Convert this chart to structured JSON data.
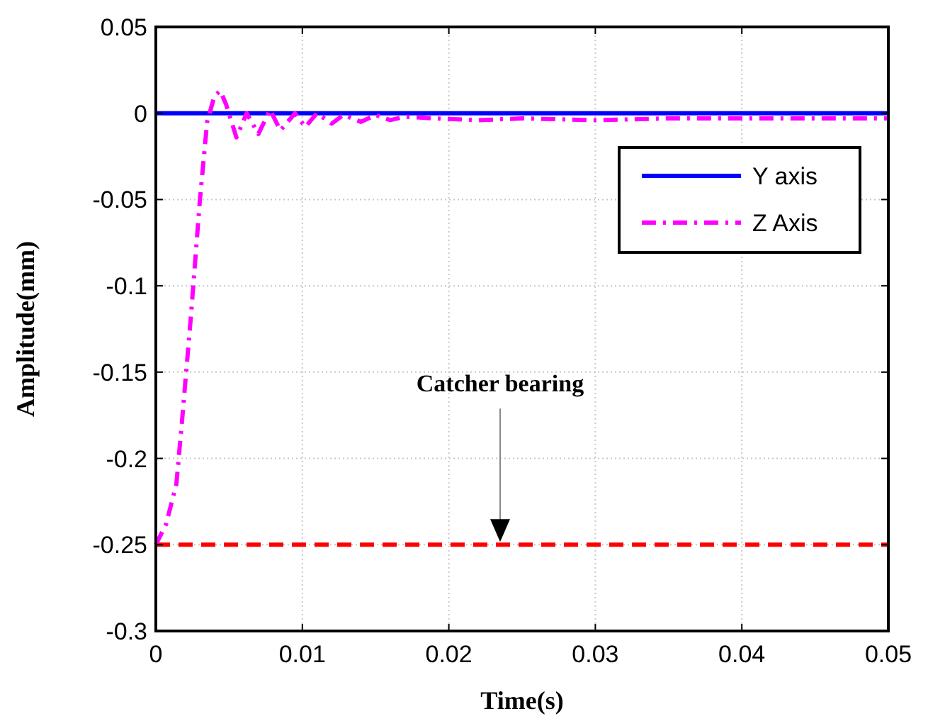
{
  "chart_data": {
    "type": "line",
    "xlabel": "Time(s)",
    "ylabel": "Amplitude(mm)",
    "xlim": [
      0,
      0.05
    ],
    "xticks": [
      0,
      0.01,
      0.02,
      0.03,
      0.04,
      0.05
    ],
    "ylim": [
      -0.3,
      0.05
    ],
    "yticks": [
      -0.3,
      -0.25,
      -0.2,
      -0.15,
      -0.1,
      -0.05,
      0,
      0.05
    ],
    "grid": true,
    "legend": "top right",
    "marker": "none",
    "annotations": [
      "Catcher bearing"
    ],
    "series": [
      {
        "name": "Y axis",
        "color": "#0000ff",
        "line_style": "solid",
        "x": [
          0,
          0.05
        ],
        "values": [
          0,
          0
        ]
      },
      {
        "name": "Z Axis",
        "color": "#ff00ff",
        "line_style": "dashdot",
        "x": [
          0,
          0.0007,
          0.0014,
          0.0018,
          0.0024,
          0.003,
          0.0035,
          0.004,
          0.0044,
          0.0048,
          0.0055,
          0.0062,
          0.007,
          0.0078,
          0.0085,
          0.0095,
          0.0102,
          0.011,
          0.012,
          0.0128,
          0.014,
          0.015,
          0.016,
          0.017,
          0.019,
          0.022,
          0.025,
          0.03,
          0.035,
          0.04,
          0.045,
          0.05
        ],
        "values": [
          -0.25,
          -0.238,
          -0.215,
          -0.177,
          -0.117,
          -0.051,
          -0.005,
          0.01,
          0.013,
          0.005,
          -0.014,
          0,
          -0.012,
          0.002,
          -0.01,
          0,
          -0.008,
          0,
          -0.006,
          -0.001,
          -0.005,
          -0.001,
          -0.004,
          -0.002,
          -0.003,
          -0.004,
          -0.003,
          -0.004,
          -0.003,
          -0.003,
          -0.003,
          -0.003
        ]
      }
    ],
    "ref_lines": [
      {
        "axis": "y",
        "value": -0.25,
        "color": "#ff0000",
        "line_style": "dashed"
      }
    ]
  }
}
